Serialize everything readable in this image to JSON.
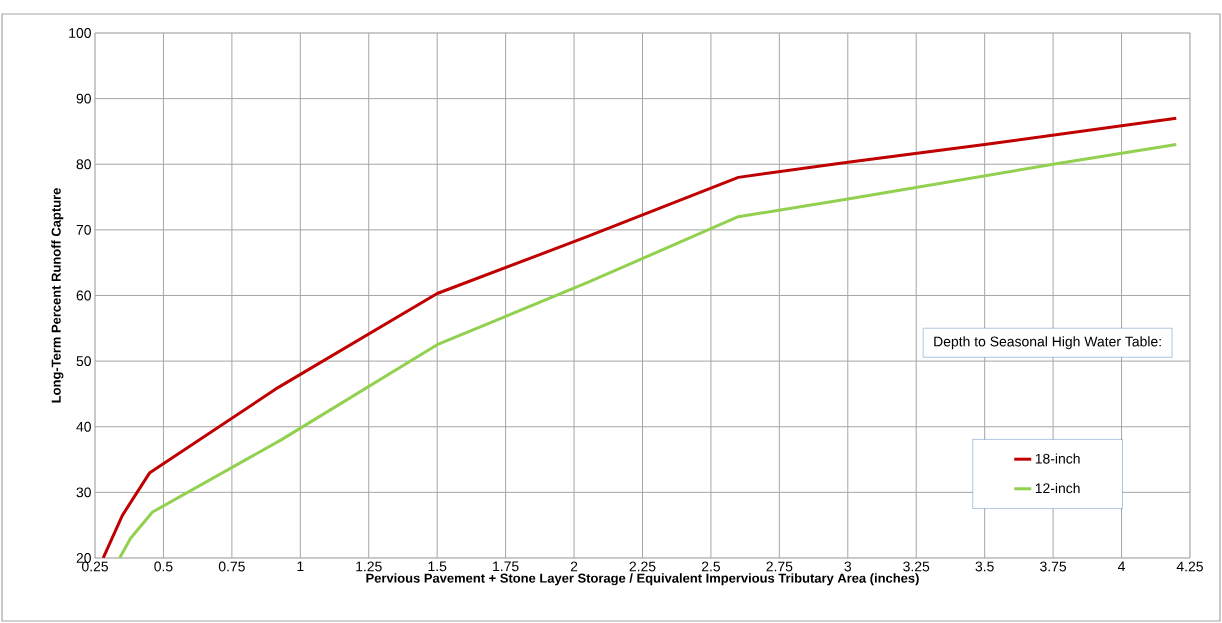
{
  "chart_data": {
    "type": "line",
    "xlabel": "Pervious Pavement + Stone Layer Storage / Equivalent Impervious Tributary Area (inches)",
    "ylabel": "Long-Term Percent Runoff Capture",
    "legend_title": "Depth to Seasonal High Water Table:",
    "series": [
      {
        "name": "18-inch",
        "color": "#c00000",
        "x": [
          0.28,
          0.35,
          0.45,
          0.92,
          1.5,
          2.05,
          2.6,
          3.0,
          3.5,
          4.2
        ],
        "values": [
          20,
          26.5,
          33,
          46,
          60.3,
          69,
          78,
          80.3,
          83,
          87
        ]
      },
      {
        "name": "12-inch",
        "color": "#92d050",
        "x": [
          0.34,
          0.38,
          0.46,
          0.93,
          1.5,
          2.05,
          2.6,
          3.0,
          3.75,
          4.2
        ],
        "values": [
          20,
          23,
          27,
          38,
          52.5,
          62,
          72,
          74.7,
          80,
          83
        ]
      }
    ],
    "xlim": [
      0.25,
      4.25
    ],
    "ylim": [
      20,
      100
    ],
    "xticks": [
      0.25,
      0.5,
      0.75,
      1,
      1.25,
      1.5,
      1.75,
      2,
      2.25,
      2.5,
      2.75,
      3,
      3.25,
      3.5,
      3.75,
      4,
      4.25
    ],
    "yticks": [
      20,
      30,
      40,
      50,
      60,
      70,
      80,
      90,
      100
    ],
    "grid": true,
    "legend": "bottom right",
    "marker": "none",
    "line_style": "solid"
  }
}
